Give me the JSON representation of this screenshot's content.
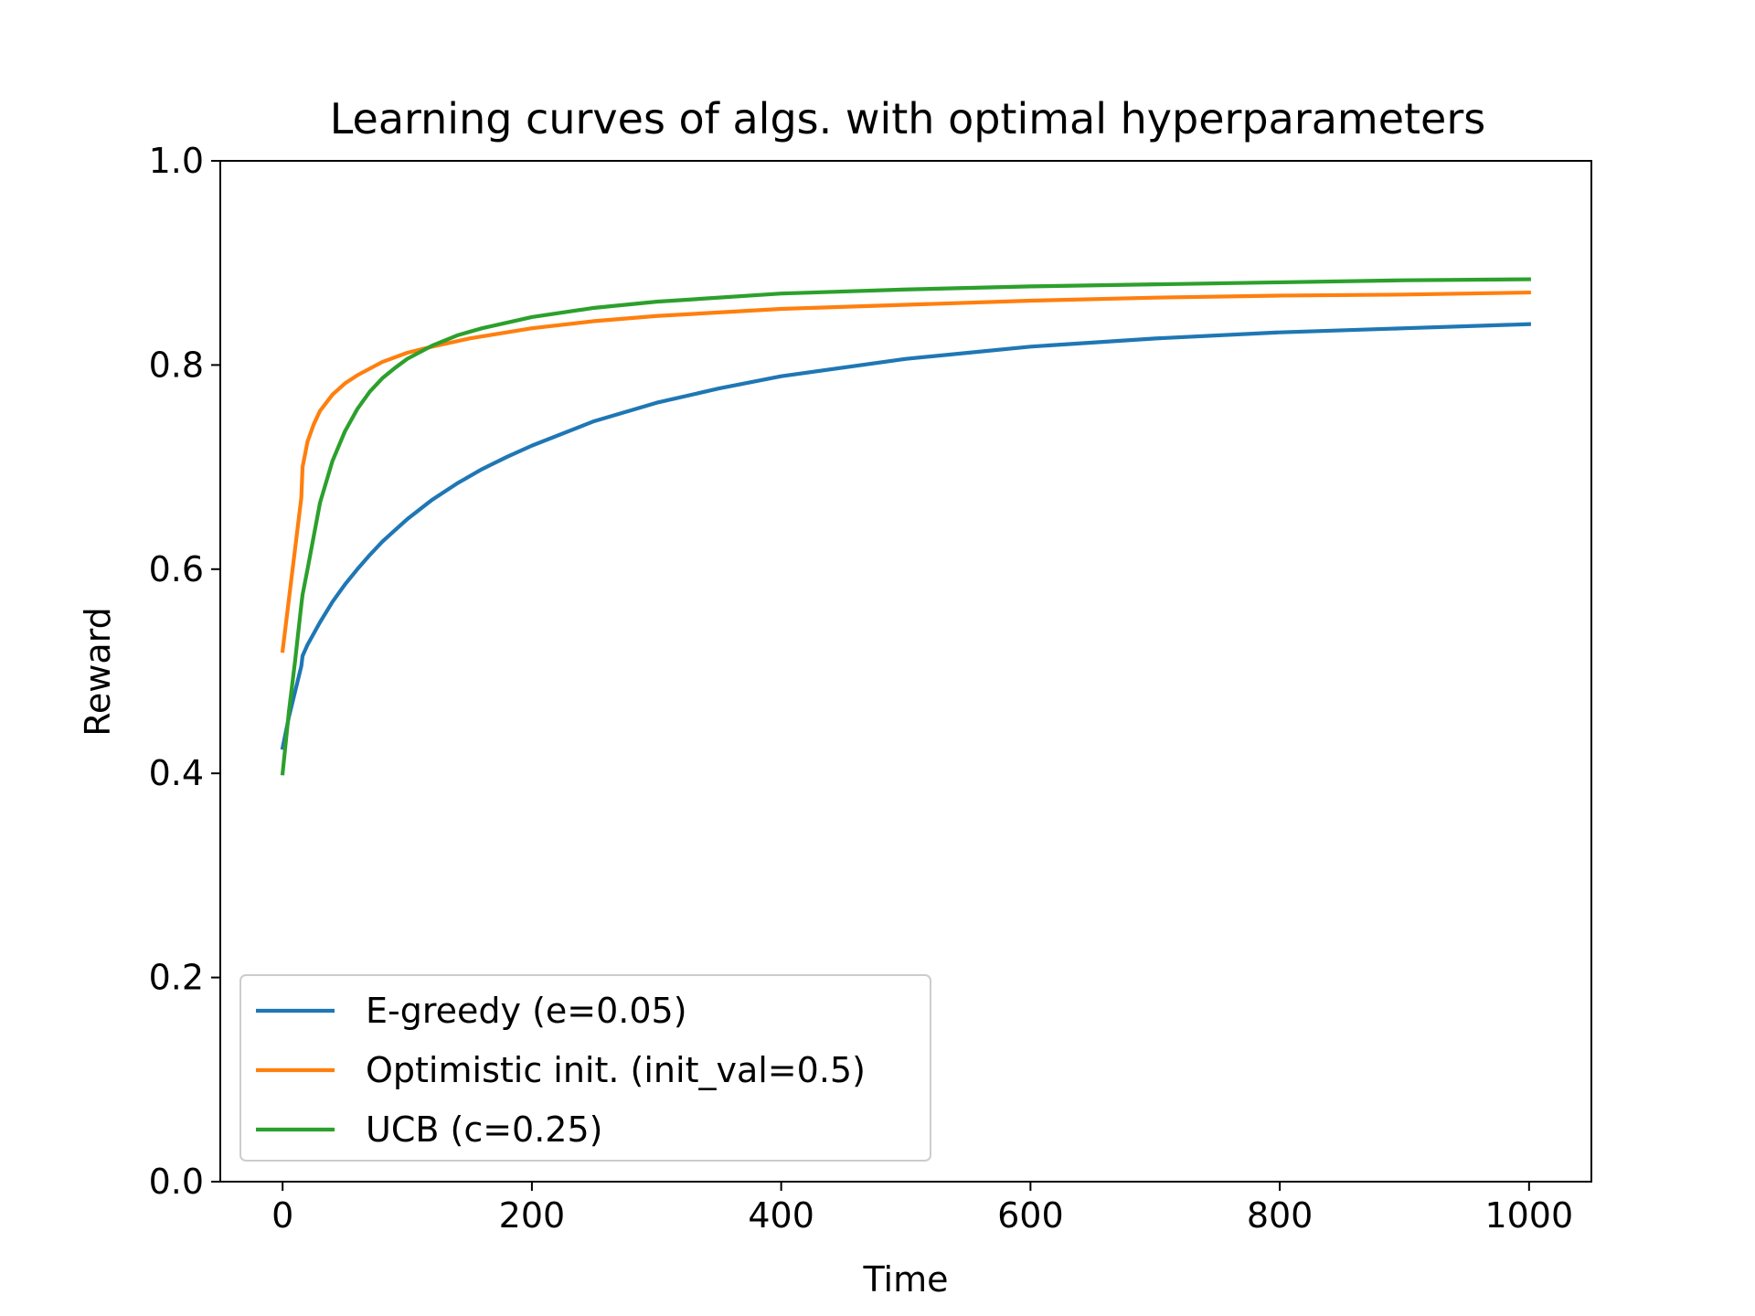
{
  "chart_data": {
    "type": "line",
    "title": "Learning curves of algs. with optimal hyperparameters",
    "xlabel": "Time",
    "ylabel": "Reward",
    "xlim": [
      -50,
      1050
    ],
    "ylim": [
      0.0,
      1.0
    ],
    "xticks": [
      0,
      200,
      400,
      600,
      800,
      1000
    ],
    "xtick_labels": [
      "0",
      "200",
      "400",
      "600",
      "800",
      "1000"
    ],
    "yticks": [
      0.0,
      0.2,
      0.4,
      0.6,
      0.8,
      1.0
    ],
    "ytick_labels": [
      "0.0",
      "0.2",
      "0.4",
      "0.6",
      "0.8",
      "1.0"
    ],
    "grid": false,
    "legend_position": "lower-left",
    "series": [
      {
        "name": "E-greedy (e=0.05)",
        "color": "#1f77b4",
        "x": [
          0,
          5,
          10,
          15,
          16,
          20,
          30,
          40,
          50,
          60,
          70,
          80,
          90,
          100,
          120,
          140,
          160,
          180,
          200,
          250,
          300,
          350,
          400,
          500,
          600,
          700,
          800,
          900,
          1000
        ],
        "y": [
          0.425,
          0.455,
          0.48,
          0.505,
          0.515,
          0.526,
          0.548,
          0.568,
          0.585,
          0.6,
          0.614,
          0.627,
          0.638,
          0.649,
          0.668,
          0.684,
          0.698,
          0.71,
          0.721,
          0.745,
          0.763,
          0.777,
          0.789,
          0.806,
          0.818,
          0.826,
          0.832,
          0.836,
          0.84
        ]
      },
      {
        "name": "Optimistic init. (init_val=0.5)",
        "color": "#ff7f0e",
        "x": [
          0,
          5,
          10,
          15,
          16,
          20,
          25,
          30,
          40,
          50,
          60,
          80,
          100,
          120,
          150,
          200,
          250,
          300,
          400,
          500,
          600,
          700,
          800,
          900,
          1000
        ],
        "y": [
          0.52,
          0.57,
          0.62,
          0.67,
          0.7,
          0.725,
          0.742,
          0.755,
          0.771,
          0.782,
          0.79,
          0.803,
          0.812,
          0.818,
          0.826,
          0.836,
          0.843,
          0.848,
          0.855,
          0.859,
          0.863,
          0.866,
          0.868,
          0.869,
          0.871
        ]
      },
      {
        "name": "UCB (c=0.25)",
        "color": "#2ca02c",
        "x": [
          0,
          5,
          10,
          15,
          16,
          20,
          30,
          40,
          50,
          60,
          70,
          80,
          90,
          100,
          120,
          140,
          160,
          200,
          250,
          300,
          400,
          500,
          600,
          700,
          800,
          900,
          1000
        ],
        "y": [
          0.4,
          0.46,
          0.51,
          0.565,
          0.575,
          0.6,
          0.665,
          0.706,
          0.735,
          0.757,
          0.774,
          0.787,
          0.797,
          0.806,
          0.819,
          0.829,
          0.836,
          0.847,
          0.856,
          0.862,
          0.87,
          0.874,
          0.877,
          0.879,
          0.881,
          0.883,
          0.884
        ]
      }
    ]
  }
}
